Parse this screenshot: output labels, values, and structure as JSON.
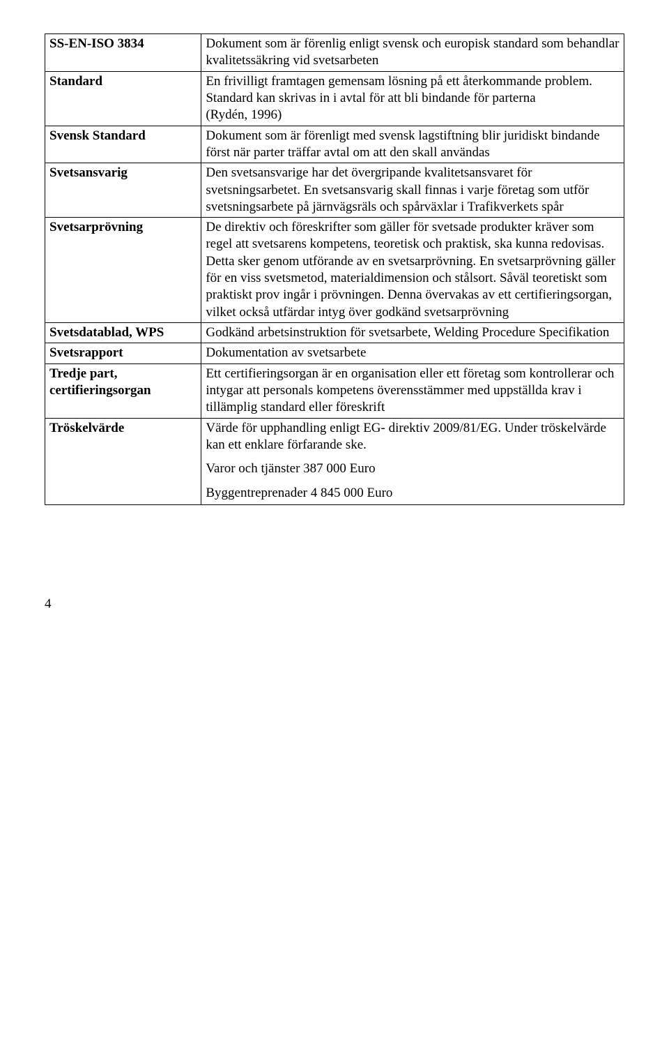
{
  "rows": [
    {
      "term": "SS-EN-ISO 3834",
      "def": "Dokument som är förenlig enligt svensk och europisk standard som behandlar kvalitetssäkring vid svetsarbeten"
    },
    {
      "term": "Standard",
      "def": "En frivilligt framtagen gemensam lösning på ett återkommande problem. Standard kan skrivas in i avtal för att bli bindande för parterna\n(Rydén, 1996)"
    },
    {
      "term": "Svensk Standard",
      "def": "Dokument som är förenligt med svensk lagstiftning blir juridiskt bindande först när parter träffar avtal om att den skall användas"
    },
    {
      "term": "Svetsansvarig",
      "def": "Den svetsansvarige har det övergripande kvalitetsansvaret för svetsningsarbetet. En svetsansvarig skall finnas i varje företag som utför svetsningsarbete på järnvägsräls och spårväxlar i Trafikverkets spår"
    },
    {
      "term": "Svetsarprövning",
      "def": "De direktiv och föreskrifter som gäller för svetsade produkter kräver som regel att svetsarens kompetens, teoretisk och praktisk, ska kunna redovisas. Detta sker genom utförande av en svetsarprövning. En svetsarprövning gäller för en viss svetsmetod, materialdimension och stålsort. Såväl teoretiskt som praktiskt prov ingår i prövningen. Denna övervakas av ett certifieringsorgan, vilket också utfärdar intyg över godkänd svetsarprövning"
    },
    {
      "term": "Svetsdatablad, WPS",
      "def": "Godkänd arbetsinstruktion för svetsarbete, Welding Procedure Specifikation"
    },
    {
      "term": "Svetsrapport",
      "def": "Dokumentation av svetsarbete"
    },
    {
      "term": "Tredje part, certifieringsorgan",
      "def": "Ett certifieringsorgan är en organisation eller ett företag som kontrollerar och intygar att personals kompetens överensstämmer med uppställda krav i tillämplig standard eller föreskrift"
    },
    {
      "term": "Tröskelvärde",
      "def_multi": [
        "Värde för upphandling enligt EG- direktiv 2009/81/EG. Under tröskelvärde kan ett enklare förfarande ske.",
        "Varor och tjänster 387 000 Euro",
        "Byggentreprenader 4 845 000 Euro"
      ]
    }
  ],
  "pageNumber": "4"
}
